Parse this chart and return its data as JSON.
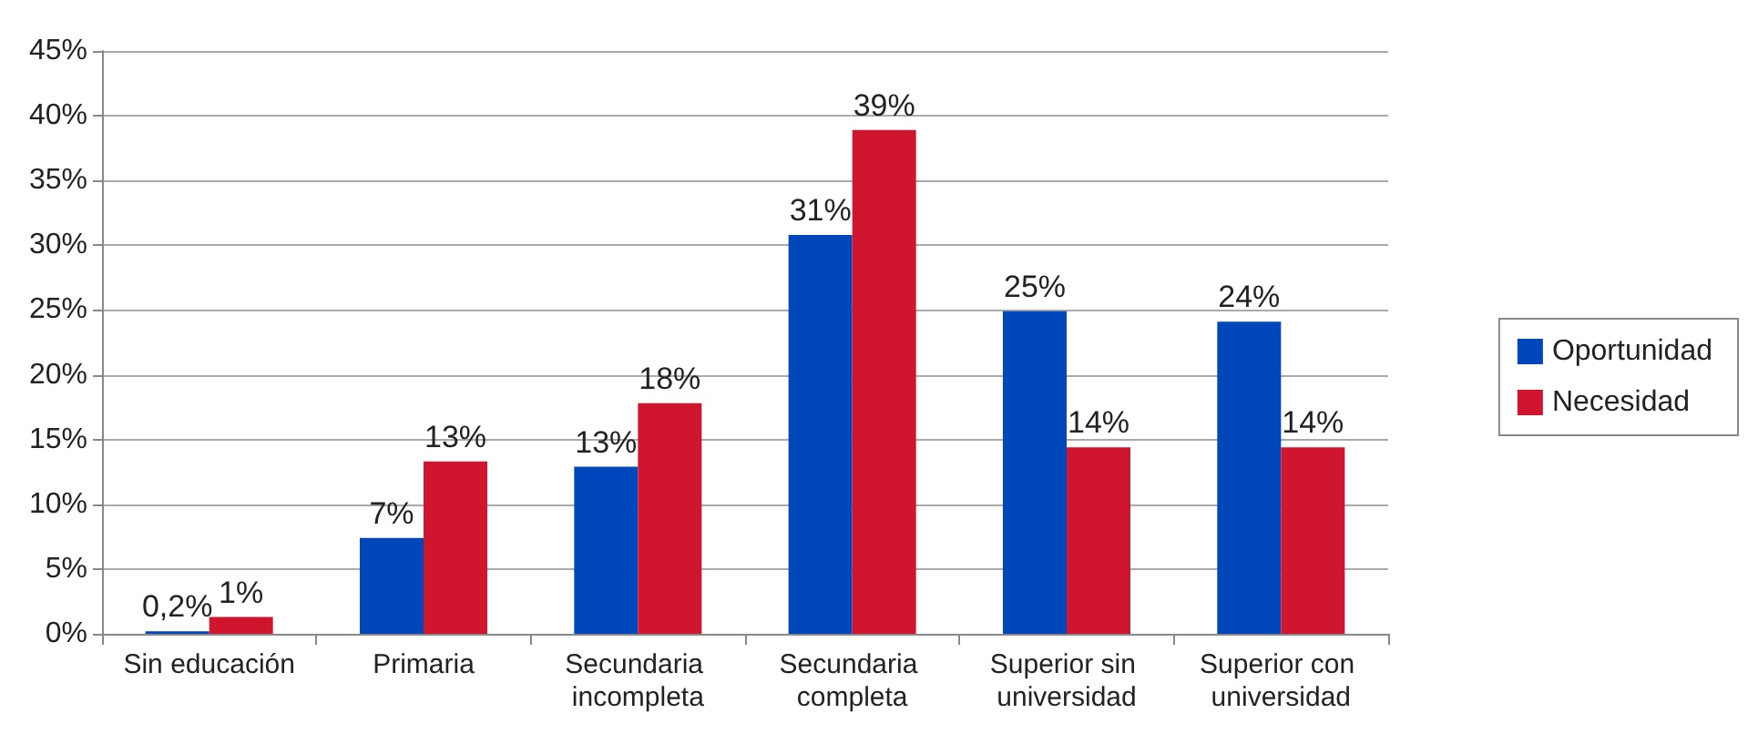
{
  "chart_data": {
    "type": "bar",
    "categories": [
      "Sin educación",
      "Primaria",
      "Secundaria incompleta",
      "Secundaria completa",
      "Superior sin universidad",
      "Superior con universidad"
    ],
    "series": [
      {
        "name": "Oportunidad",
        "color": "#0047bb",
        "values": [
          0.2,
          7.4,
          12.9,
          30.8,
          24.9,
          24.1
        ],
        "value_labels": [
          "0,2%",
          "7%",
          "13%",
          "31%",
          "25%",
          "24%"
        ]
      },
      {
        "name": "Necesidad",
        "color": "#d0152e",
        "values": [
          1.3,
          13.3,
          17.8,
          38.9,
          14.4,
          14.4
        ],
        "value_labels": [
          "1%",
          "13%",
          "18%",
          "39%",
          "14%",
          "14%"
        ]
      }
    ],
    "ylim": [
      0,
      45
    ],
    "yticks": [
      {
        "value": 0,
        "label": "0%"
      },
      {
        "value": 5,
        "label": "5%"
      },
      {
        "value": 10,
        "label": "10%"
      },
      {
        "value": 15,
        "label": "15%"
      },
      {
        "value": 20,
        "label": "20%"
      },
      {
        "value": 25,
        "label": "25%"
      },
      {
        "value": 30,
        "label": "30%"
      },
      {
        "value": 35,
        "label": "35%"
      },
      {
        "value": 40,
        "label": "40%"
      },
      {
        "value": 45,
        "label": "45%"
      }
    ],
    "grid": "y",
    "legend": "right"
  }
}
